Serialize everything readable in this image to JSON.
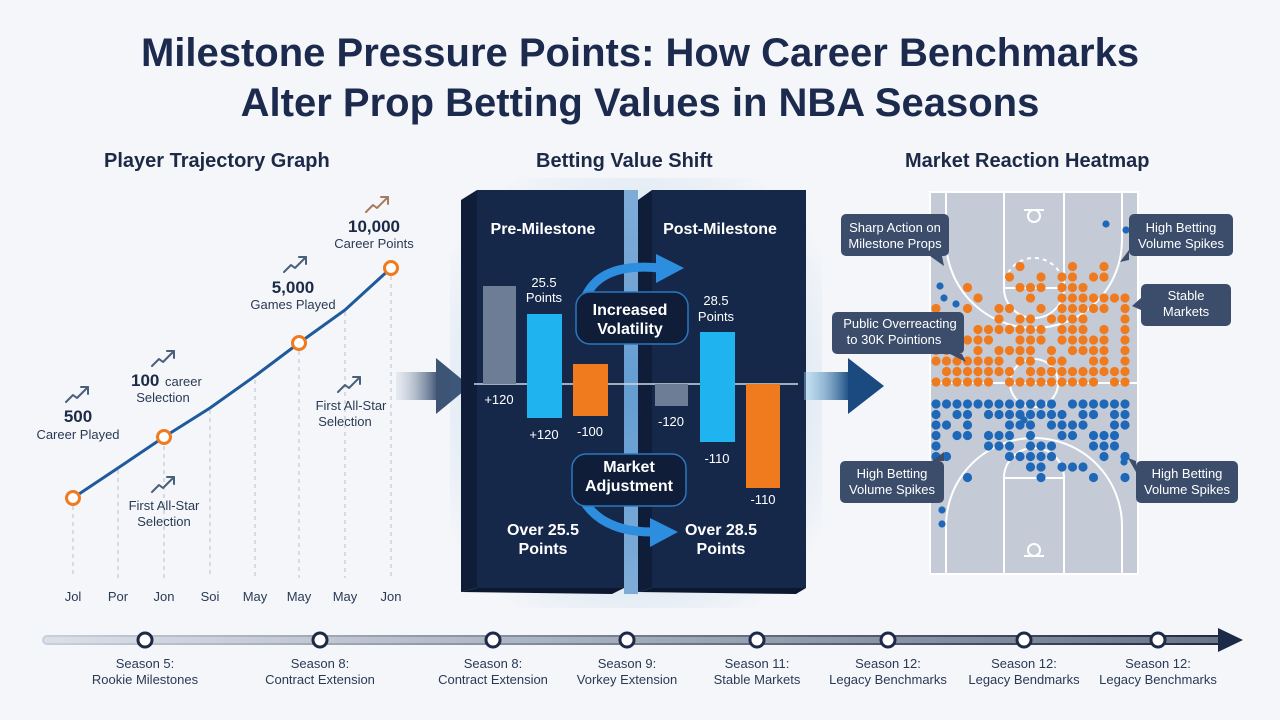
{
  "title_line1": "Milestone Pressure Points: How Career Benchmarks",
  "title_line2": "Alter Prop Betting Values in NBA Seasons",
  "trajectory": {
    "heading": "Player Trajectory Graph",
    "x_ticks": [
      "Jol",
      "Por",
      "Jon",
      "Soi",
      "May",
      "May",
      "May",
      "Jon"
    ],
    "ann_500_num": "500",
    "ann_500_sub": "Career Played",
    "ann_100_num": "100",
    "ann_100_rest": "career",
    "ann_100_sub": "Selection",
    "ann_5000_num": "5,000",
    "ann_5000_sub": "Games Played",
    "ann_10000_num": "10,000",
    "ann_10000_sub": "Career Points",
    "ann_allstar1_l1": "First All-Star",
    "ann_allstar1_l2": "Selection",
    "ann_allstar2_l1": "First All-Star",
    "ann_allstar2_l2": "Selection",
    "colors": {
      "line": "#1f5a9a",
      "marker": "#f07a1e",
      "arrow": "#4a5f7a"
    }
  },
  "betting": {
    "heading": "Betting Value Shift",
    "pre_label": "Pre-Milestone",
    "post_label": "Post-Milestone",
    "pre_line_l1": "25.5",
    "pre_line_l2": "Points",
    "post_line_l1": "28.5",
    "post_line_l2": "Points",
    "pre_odds_left": "+120",
    "pre_odds_blue": "+120",
    "pre_odds_orange": "-100",
    "post_odds_left": "-120",
    "post_odds_blue": "-110",
    "post_odds_orange": "-110",
    "volatility_l1": "Increased",
    "volatility_l2": "Volatility",
    "adjust_l1": "Market",
    "adjust_l2": "Adjustment",
    "over_pre_l1": "Over 25.5",
    "over_pre_l2": "Points",
    "over_post_l1": "Over 28.5",
    "over_post_l2": "Points",
    "colors": {
      "panel": "#17284a",
      "blue": "#1fb3f0",
      "orange": "#f07a1e",
      "gray": "#6e7d96"
    }
  },
  "heatmap": {
    "heading": "Market Reaction Heatmap",
    "label_sharp_l1": "Sharp Action on",
    "label_sharp_l2": "Milestone Props",
    "label_high_tr_l1": "High Betting",
    "label_high_tr_l2": "Volume Spikes",
    "label_stable_l1": "Stable",
    "label_stable_l2": "Markets",
    "label_public_l1": "Public Overreacting",
    "label_public_l2": "to 30K Pointions",
    "label_high_bl_l1": "High Betting",
    "label_high_bl_l2": "Volume Spikes",
    "label_high_br_l1": "High Betting",
    "label_high_br_l2": "Volume Spikes",
    "colors": {
      "court": "#c4cbd6",
      "orange": "#f07a1e",
      "blue": "#1f68b8"
    }
  },
  "timeline": [
    {
      "l1": "Season 5:",
      "l2": "Rookie Milestones"
    },
    {
      "l1": "Season 8:",
      "l2": "Contract Extension"
    },
    {
      "l1": "Season 8:",
      "l2": "Contract Extension"
    },
    {
      "l1": "Season 9:",
      "l2": "Vorkey Extension"
    },
    {
      "l1": "Season 11:",
      "l2": "Stable Markets"
    },
    {
      "l1": "Season 12:",
      "l2": "Legacy Benchmarks"
    },
    {
      "l1": "Season 12:",
      "l2": "Legacy Bendmarks"
    },
    {
      "l1": "Season 12:",
      "l2": "Legacy Benchmarks"
    }
  ]
}
